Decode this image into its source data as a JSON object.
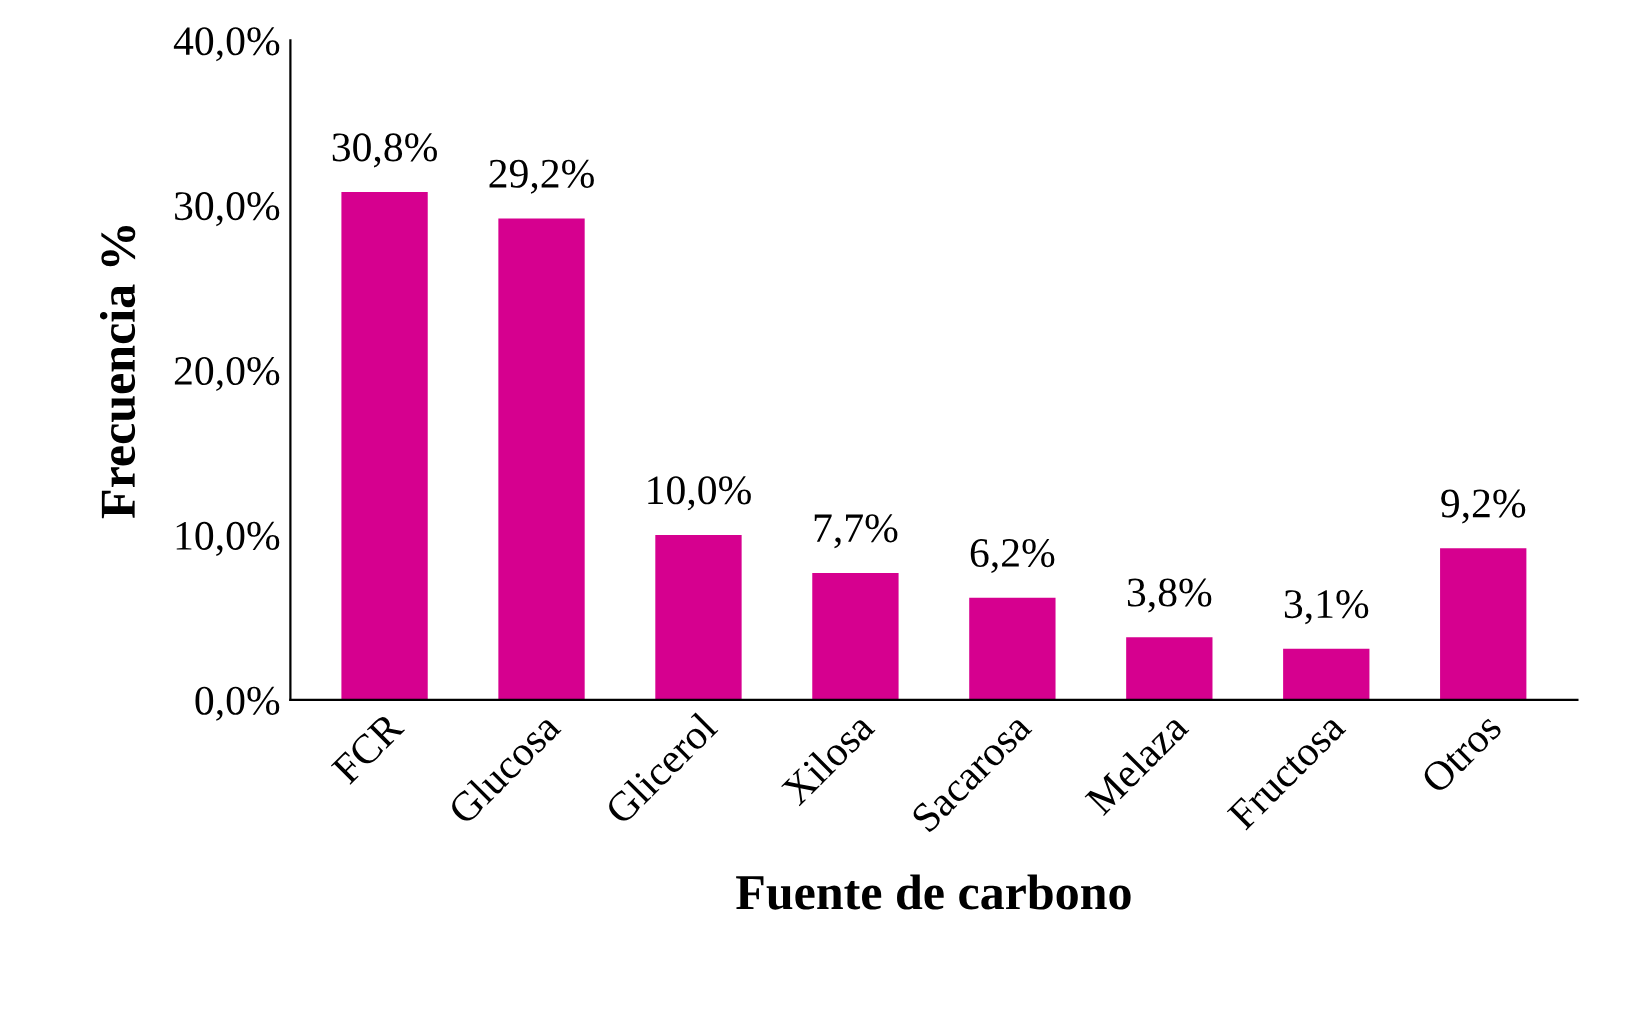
{
  "chart_data": {
    "type": "bar",
    "xlabel": "Fuente de carbono",
    "ylabel": "Frecuencia %",
    "categories": [
      "FCR",
      "Glucosa",
      "Glicerol",
      "Xilosa",
      "Sacarosa",
      "Melaza",
      "Fructosa",
      "Otros"
    ],
    "values": [
      30.8,
      29.2,
      10.0,
      7.7,
      6.2,
      3.8,
      3.1,
      9.2
    ],
    "value_labels": [
      "30,8%",
      "29,2%",
      "10,0%",
      "7,7%",
      "6,2%",
      "3,8%",
      "3,1%",
      "9,2%"
    ],
    "color": "#d6008f",
    "ylim": [
      0,
      40
    ],
    "yticks": [
      {
        "value": 0,
        "label": "0,0%"
      },
      {
        "value": 10,
        "label": "10,0%"
      },
      {
        "value": 20,
        "label": "20,0%"
      },
      {
        "value": 30,
        "label": "30,0%"
      },
      {
        "value": 40,
        "label": "40,0%"
      }
    ],
    "grid": false,
    "legend": false
  }
}
